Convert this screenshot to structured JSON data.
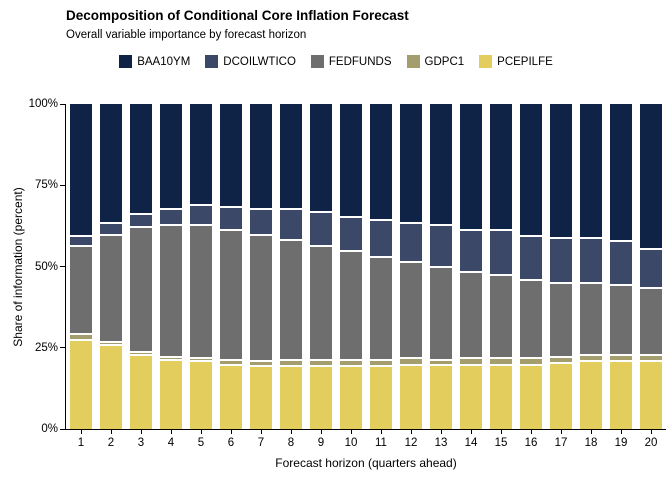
{
  "header": {
    "title": "Decomposition of Conditional Core Inflation Forecast",
    "subtitle": "Overall variable importance by forecast horizon"
  },
  "legend": {
    "position": "top-center",
    "items": [
      {
        "label": "BAA10YM",
        "color": "#0f2347"
      },
      {
        "label": "DCOILWTICO",
        "color": "#3b4868"
      },
      {
        "label": "FEDFUNDS",
        "color": "#6e6e6e"
      },
      {
        "label": "GDPC1",
        "color": "#a49e6e"
      },
      {
        "label": "PCEPILFE",
        "color": "#e3cd5c"
      }
    ]
  },
  "chart_data": {
    "type": "bar",
    "variant": "stacked-100-percent",
    "title": "Decomposition of Conditional Core Inflation Forecast",
    "subtitle": "Overall variable importance by forecast horizon",
    "xlabel": "Forecast horizon (quarters ahead)",
    "ylabel": "Share of information (percent)",
    "ylim": [
      0,
      100
    ],
    "grid": false,
    "yticks": [
      {
        "value": 0,
        "label": "0%"
      },
      {
        "value": 25,
        "label": "25%"
      },
      {
        "value": 50,
        "label": "50%"
      },
      {
        "value": 75,
        "label": "75%"
      },
      {
        "value": 100,
        "label": "100%"
      }
    ],
    "categories": [
      "1",
      "2",
      "3",
      "4",
      "5",
      "6",
      "7",
      "8",
      "9",
      "10",
      "11",
      "12",
      "13",
      "14",
      "15",
      "16",
      "17",
      "18",
      "19",
      "20"
    ],
    "stack_order": "bottom-to-top",
    "series": [
      {
        "name": "PCEPILFE",
        "color": "#e3cd5c",
        "values": [
          27,
          25.5,
          22.5,
          21,
          20.5,
          19.5,
          19,
          19,
          19,
          19,
          19,
          19.5,
          19.5,
          19.5,
          19.5,
          19.5,
          20,
          20.5,
          20.5,
          20.5
        ]
      },
      {
        "name": "GDPC1",
        "color": "#a49e6e",
        "values": [
          2,
          1,
          1,
          1,
          1,
          1.5,
          1.5,
          2,
          2,
          2,
          2,
          2,
          1.5,
          2,
          2,
          2,
          2,
          2,
          2,
          2
        ]
      },
      {
        "name": "FEDFUNDS",
        "color": "#6e6e6e",
        "values": [
          27,
          33,
          38.5,
          40.5,
          41,
          40,
          39,
          37,
          35,
          33.5,
          31.5,
          29.5,
          28.5,
          26.5,
          25.5,
          24,
          22.5,
          22,
          21.5,
          20.5
        ]
      },
      {
        "name": "DCOILWTICO",
        "color": "#3b4868",
        "values": [
          3,
          3.5,
          4,
          5,
          6,
          7,
          8,
          9.5,
          10.5,
          10.5,
          11.5,
          12,
          13,
          13,
          14,
          13.5,
          14,
          14,
          13.5,
          12
        ]
      },
      {
        "name": "BAA10YM",
        "color": "#0f2347",
        "values": [
          41,
          37,
          34,
          32.5,
          31.5,
          32,
          32.5,
          32.5,
          33.5,
          35,
          36,
          37,
          37.5,
          39,
          39,
          41,
          41.5,
          41.5,
          42.5,
          45
        ]
      }
    ]
  }
}
